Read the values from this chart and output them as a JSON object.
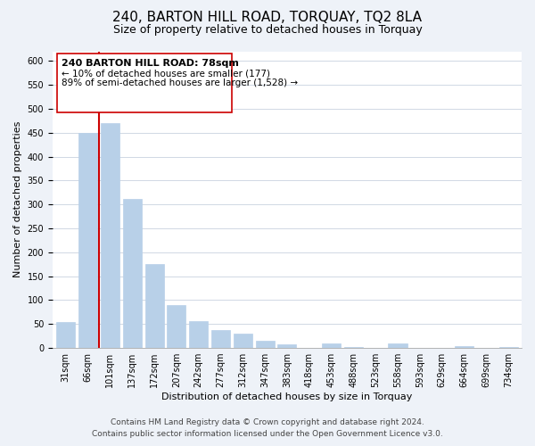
{
  "title": "240, BARTON HILL ROAD, TORQUAY, TQ2 8LA",
  "subtitle": "Size of property relative to detached houses in Torquay",
  "xlabel": "Distribution of detached houses by size in Torquay",
  "ylabel": "Number of detached properties",
  "bar_labels": [
    "31sqm",
    "66sqm",
    "101sqm",
    "137sqm",
    "172sqm",
    "207sqm",
    "242sqm",
    "277sqm",
    "312sqm",
    "347sqm",
    "383sqm",
    "418sqm",
    "453sqm",
    "488sqm",
    "523sqm",
    "558sqm",
    "593sqm",
    "629sqm",
    "664sqm",
    "699sqm",
    "734sqm"
  ],
  "bar_values": [
    55,
    450,
    470,
    312,
    175,
    90,
    57,
    38,
    30,
    15,
    7,
    1,
    9,
    2,
    1,
    9,
    1,
    0,
    3,
    0,
    2
  ],
  "bar_color": "#b8d0e8",
  "bar_edge_color": "#b8d0e8",
  "marker_line_color": "#cc0000",
  "ylim": [
    0,
    620
  ],
  "yticks": [
    0,
    50,
    100,
    150,
    200,
    250,
    300,
    350,
    400,
    450,
    500,
    550,
    600
  ],
  "annotation_line1": "240 BARTON HILL ROAD: 78sqm",
  "annotation_line2": "← 10% of detached houses are smaller (177)",
  "annotation_line3": "89% of semi-detached houses are larger (1,528) →",
  "footer_line1": "Contains HM Land Registry data © Crown copyright and database right 2024.",
  "footer_line2": "Contains public sector information licensed under the Open Government Licence v3.0.",
  "bg_color": "#eef2f8",
  "plot_bg_color": "#ffffff",
  "title_fontsize": 11,
  "subtitle_fontsize": 9,
  "axis_label_fontsize": 8,
  "tick_fontsize": 7,
  "footer_fontsize": 6.5
}
